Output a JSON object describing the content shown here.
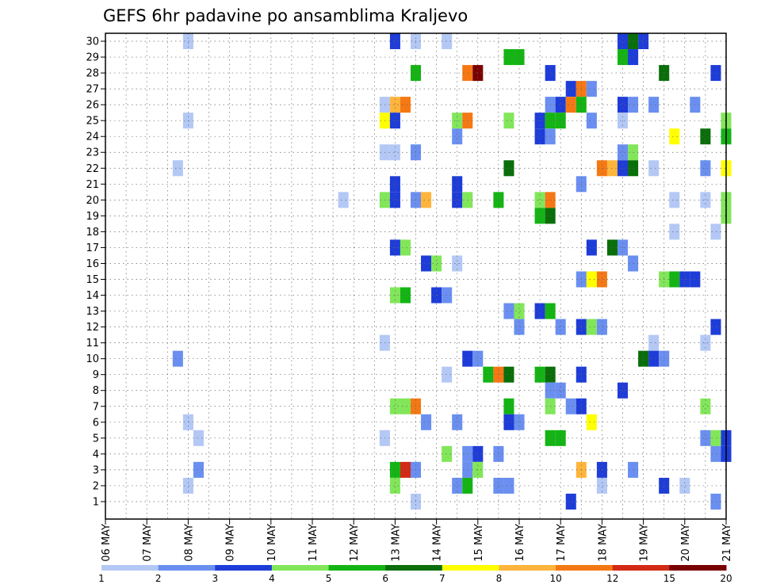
{
  "chart_data": {
    "type": "heatmap",
    "title": "GEFS 6hr padavine po ansamblima Kraljevo",
    "y_ticks": [
      1,
      2,
      3,
      4,
      5,
      6,
      7,
      8,
      9,
      10,
      11,
      12,
      13,
      14,
      15,
      16,
      17,
      18,
      19,
      20,
      21,
      22,
      23,
      24,
      25,
      26,
      27,
      28,
      29,
      30
    ],
    "x_tick_labels": [
      "06 MAY",
      "07 MAY",
      "08 MAY",
      "09 MAY",
      "10 MAY",
      "11 MAY",
      "12 MAY",
      "13 MAY",
      "14 MAY",
      "15 MAY",
      "16 MAY",
      "17 MAY",
      "18 MAY",
      "19 MAY",
      "20 MAY",
      "21 MAY"
    ],
    "steps_per_day": 4,
    "grid": true,
    "legend": {
      "position": "bottom",
      "colors": [
        "#b4c8f5",
        "#6a8ff0",
        "#1e3cd8",
        "#82e65a",
        "#14b414",
        "#0a6e0a",
        "#ffff00",
        "#ffb43c",
        "#f57814",
        "#d22a14",
        "#7a0000"
      ],
      "tick_labels": [
        "1",
        "2",
        "3",
        "4",
        "5",
        "6",
        "7",
        "8",
        "10",
        "12",
        "15",
        "20"
      ]
    },
    "cells": [
      {
        "x": "08 MAY 00",
        "member": 30,
        "bin": 1
      },
      {
        "x": "13 MAY 00",
        "member": 30,
        "bin": 3
      },
      {
        "x": "13 MAY 12",
        "member": 30,
        "bin": 1
      },
      {
        "x": "14 MAY 06",
        "member": 30,
        "bin": 1
      },
      {
        "x": "18 MAY 12",
        "member": 30,
        "bin": 3
      },
      {
        "x": "18 MAY 18",
        "member": 30,
        "bin": 6
      },
      {
        "x": "19 MAY 00",
        "member": 30,
        "bin": 3
      },
      {
        "x": "15 MAY 18",
        "member": 29,
        "bin": 5
      },
      {
        "x": "16 MAY 00",
        "member": 29,
        "bin": 5
      },
      {
        "x": "18 MAY 12",
        "member": 29,
        "bin": 5
      },
      {
        "x": "18 MAY 18",
        "member": 29,
        "bin": 3
      },
      {
        "x": "13 MAY 12",
        "member": 28,
        "bin": 5
      },
      {
        "x": "14 MAY 18",
        "member": 28,
        "bin": 9
      },
      {
        "x": "15 MAY 00",
        "member": 28,
        "bin": 11
      },
      {
        "x": "16 MAY 18",
        "member": 28,
        "bin": 3
      },
      {
        "x": "19 MAY 12",
        "member": 28,
        "bin": 6
      },
      {
        "x": "20 MAY 18",
        "member": 28,
        "bin": 3
      },
      {
        "x": "17 MAY 06",
        "member": 27,
        "bin": 3
      },
      {
        "x": "17 MAY 12",
        "member": 27,
        "bin": 9
      },
      {
        "x": "17 MAY 18",
        "member": 27,
        "bin": 2
      },
      {
        "x": "12 MAY 18",
        "member": 26,
        "bin": 1
      },
      {
        "x": "13 MAY 00",
        "member": 26,
        "bin": 8
      },
      {
        "x": "13 MAY 06",
        "member": 26,
        "bin": 9
      },
      {
        "x": "16 MAY 18",
        "member": 26,
        "bin": 2
      },
      {
        "x": "17 MAY 00",
        "member": 26,
        "bin": 3
      },
      {
        "x": "17 MAY 06",
        "member": 26,
        "bin": 9
      },
      {
        "x": "17 MAY 12",
        "member": 26,
        "bin": 5
      },
      {
        "x": "18 MAY 12",
        "member": 26,
        "bin": 3
      },
      {
        "x": "18 MAY 18",
        "member": 26,
        "bin": 2
      },
      {
        "x": "19 MAY 06",
        "member": 26,
        "bin": 2
      },
      {
        "x": "20 MAY 06",
        "member": 26,
        "bin": 2
      },
      {
        "x": "08 MAY 00",
        "member": 25,
        "bin": 1
      },
      {
        "x": "12 MAY 18",
        "member": 25,
        "bin": 7
      },
      {
        "x": "13 MAY 00",
        "member": 25,
        "bin": 3
      },
      {
        "x": "14 MAY 12",
        "member": 25,
        "bin": 4
      },
      {
        "x": "14 MAY 18",
        "member": 25,
        "bin": 9
      },
      {
        "x": "15 MAY 18",
        "member": 25,
        "bin": 4
      },
      {
        "x": "16 MAY 12",
        "member": 25,
        "bin": 3
      },
      {
        "x": "16 MAY 18",
        "member": 25,
        "bin": 5
      },
      {
        "x": "17 MAY 00",
        "member": 25,
        "bin": 5
      },
      {
        "x": "17 MAY 18",
        "member": 25,
        "bin": 2
      },
      {
        "x": "18 MAY 12",
        "member": 25,
        "bin": 1
      },
      {
        "x": "21 MAY 00",
        "member": 25,
        "bin": 4
      },
      {
        "x": "14 MAY 12",
        "member": 24,
        "bin": 2
      },
      {
        "x": "16 MAY 12",
        "member": 24,
        "bin": 3
      },
      {
        "x": "16 MAY 18",
        "member": 24,
        "bin": 2
      },
      {
        "x": "19 MAY 18",
        "member": 24,
        "bin": 7
      },
      {
        "x": "20 MAY 12",
        "member": 24,
        "bin": 6
      },
      {
        "x": "21 MAY 00",
        "member": 24,
        "bin": 5
      },
      {
        "x": "12 MAY 18",
        "member": 23,
        "bin": 1
      },
      {
        "x": "13 MAY 00",
        "member": 23,
        "bin": 1
      },
      {
        "x": "13 MAY 12",
        "member": 23,
        "bin": 2
      },
      {
        "x": "18 MAY 12",
        "member": 23,
        "bin": 2
      },
      {
        "x": "18 MAY 18",
        "member": 23,
        "bin": 4
      },
      {
        "x": "07 MAY 18",
        "member": 22,
        "bin": 1
      },
      {
        "x": "15 MAY 18",
        "member": 22,
        "bin": 6
      },
      {
        "x": "18 MAY 00",
        "member": 22,
        "bin": 9
      },
      {
        "x": "18 MAY 06",
        "member": 22,
        "bin": 8
      },
      {
        "x": "18 MAY 12",
        "member": 22,
        "bin": 3
      },
      {
        "x": "18 MAY 18",
        "member": 22,
        "bin": 6
      },
      {
        "x": "19 MAY 06",
        "member": 22,
        "bin": 1
      },
      {
        "x": "20 MAY 12",
        "member": 22,
        "bin": 2
      },
      {
        "x": "21 MAY 00",
        "member": 22,
        "bin": 7
      },
      {
        "x": "13 MAY 00",
        "member": 21,
        "bin": 3
      },
      {
        "x": "14 MAY 12",
        "member": 21,
        "bin": 3
      },
      {
        "x": "17 MAY 12",
        "member": 21,
        "bin": 2
      },
      {
        "x": "11 MAY 18",
        "member": 20,
        "bin": 1
      },
      {
        "x": "12 MAY 18",
        "member": 20,
        "bin": 4
      },
      {
        "x": "13 MAY 00",
        "member": 20,
        "bin": 3
      },
      {
        "x": "13 MAY 12",
        "member": 20,
        "bin": 2
      },
      {
        "x": "13 MAY 18",
        "member": 20,
        "bin": 8
      },
      {
        "x": "14 MAY 12",
        "member": 20,
        "bin": 3
      },
      {
        "x": "14 MAY 18",
        "member": 20,
        "bin": 4
      },
      {
        "x": "15 MAY 12",
        "member": 20,
        "bin": 5
      },
      {
        "x": "16 MAY 12",
        "member": 20,
        "bin": 4
      },
      {
        "x": "16 MAY 18",
        "member": 20,
        "bin": 9
      },
      {
        "x": "19 MAY 18",
        "member": 20,
        "bin": 1
      },
      {
        "x": "20 MAY 12",
        "member": 20,
        "bin": 1
      },
      {
        "x": "21 MAY 00",
        "member": 20,
        "bin": 4
      },
      {
        "x": "16 MAY 12",
        "member": 19,
        "bin": 5
      },
      {
        "x": "16 MAY 18",
        "member": 19,
        "bin": 6
      },
      {
        "x": "21 MAY 00",
        "member": 19,
        "bin": 4
      },
      {
        "x": "19 MAY 18",
        "member": 18,
        "bin": 1
      },
      {
        "x": "20 MAY 18",
        "member": 18,
        "bin": 1
      },
      {
        "x": "13 MAY 00",
        "member": 17,
        "bin": 3
      },
      {
        "x": "13 MAY 06",
        "member": 17,
        "bin": 4
      },
      {
        "x": "17 MAY 18",
        "member": 17,
        "bin": 3
      },
      {
        "x": "18 MAY 06",
        "member": 17,
        "bin": 6
      },
      {
        "x": "18 MAY 12",
        "member": 17,
        "bin": 2
      },
      {
        "x": "13 MAY 18",
        "member": 16,
        "bin": 3
      },
      {
        "x": "14 MAY 00",
        "member": 16,
        "bin": 4
      },
      {
        "x": "14 MAY 12",
        "member": 16,
        "bin": 1
      },
      {
        "x": "18 MAY 18",
        "member": 16,
        "bin": 2
      },
      {
        "x": "17 MAY 12",
        "member": 15,
        "bin": 2
      },
      {
        "x": "17 MAY 18",
        "member": 15,
        "bin": 7
      },
      {
        "x": "18 MAY 00",
        "member": 15,
        "bin": 9
      },
      {
        "x": "19 MAY 12",
        "member": 15,
        "bin": 4
      },
      {
        "x": "19 MAY 18",
        "member": 15,
        "bin": 5
      },
      {
        "x": "20 MAY 00",
        "member": 15,
        "bin": 3
      },
      {
        "x": "20 MAY 06",
        "member": 15,
        "bin": 3
      },
      {
        "x": "13 MAY 00",
        "member": 14,
        "bin": 4
      },
      {
        "x": "13 MAY 06",
        "member": 14,
        "bin": 5
      },
      {
        "x": "14 MAY 00",
        "member": 14,
        "bin": 3
      },
      {
        "x": "14 MAY 06",
        "member": 14,
        "bin": 2
      },
      {
        "x": "15 MAY 18",
        "member": 13,
        "bin": 2
      },
      {
        "x": "16 MAY 00",
        "member": 13,
        "bin": 4
      },
      {
        "x": "16 MAY 12",
        "member": 13,
        "bin": 3
      },
      {
        "x": "16 MAY 18",
        "member": 13,
        "bin": 5
      },
      {
        "x": "16 MAY 00",
        "member": 12,
        "bin": 2
      },
      {
        "x": "17 MAY 00",
        "member": 12,
        "bin": 2
      },
      {
        "x": "17 MAY 12",
        "member": 12,
        "bin": 3
      },
      {
        "x": "17 MAY 18",
        "member": 12,
        "bin": 4
      },
      {
        "x": "18 MAY 00",
        "member": 12,
        "bin": 2
      },
      {
        "x": "20 MAY 18",
        "member": 12,
        "bin": 3
      },
      {
        "x": "12 MAY 18",
        "member": 11,
        "bin": 1
      },
      {
        "x": "19 MAY 06",
        "member": 11,
        "bin": 1
      },
      {
        "x": "20 MAY 12",
        "member": 11,
        "bin": 1
      },
      {
        "x": "07 MAY 18",
        "member": 10,
        "bin": 2
      },
      {
        "x": "14 MAY 18",
        "member": 10,
        "bin": 3
      },
      {
        "x": "15 MAY 00",
        "member": 10,
        "bin": 2
      },
      {
        "x": "19 MAY 00",
        "member": 10,
        "bin": 6
      },
      {
        "x": "19 MAY 06",
        "member": 10,
        "bin": 3
      },
      {
        "x": "19 MAY 12",
        "member": 10,
        "bin": 2
      },
      {
        "x": "14 MAY 06",
        "member": 9,
        "bin": 1
      },
      {
        "x": "15 MAY 06",
        "member": 9,
        "bin": 5
      },
      {
        "x": "15 MAY 12",
        "member": 9,
        "bin": 9
      },
      {
        "x": "15 MAY 18",
        "member": 9,
        "bin": 6
      },
      {
        "x": "16 MAY 12",
        "member": 9,
        "bin": 5
      },
      {
        "x": "16 MAY 18",
        "member": 9,
        "bin": 6
      },
      {
        "x": "17 MAY 12",
        "member": 9,
        "bin": 3
      },
      {
        "x": "16 MAY 18",
        "member": 8,
        "bin": 2
      },
      {
        "x": "17 MAY 00",
        "member": 8,
        "bin": 2
      },
      {
        "x": "18 MAY 12",
        "member": 8,
        "bin": 3
      },
      {
        "x": "13 MAY 00",
        "member": 7,
        "bin": 4
      },
      {
        "x": "13 MAY 06",
        "member": 7,
        "bin": 4
      },
      {
        "x": "13 MAY 12",
        "member": 7,
        "bin": 9
      },
      {
        "x": "15 MAY 18",
        "member": 7,
        "bin": 5
      },
      {
        "x": "16 MAY 18",
        "member": 7,
        "bin": 4
      },
      {
        "x": "17 MAY 06",
        "member": 7,
        "bin": 2
      },
      {
        "x": "17 MAY 12",
        "member": 7,
        "bin": 3
      },
      {
        "x": "20 MAY 12",
        "member": 7,
        "bin": 4
      },
      {
        "x": "08 MAY 00",
        "member": 6,
        "bin": 1
      },
      {
        "x": "13 MAY 18",
        "member": 6,
        "bin": 2
      },
      {
        "x": "14 MAY 12",
        "member": 6,
        "bin": 2
      },
      {
        "x": "15 MAY 18",
        "member": 6,
        "bin": 3
      },
      {
        "x": "16 MAY 00",
        "member": 6,
        "bin": 2
      },
      {
        "x": "17 MAY 18",
        "member": 6,
        "bin": 7
      },
      {
        "x": "08 MAY 06",
        "member": 5,
        "bin": 1
      },
      {
        "x": "12 MAY 18",
        "member": 5,
        "bin": 1
      },
      {
        "x": "16 MAY 18",
        "member": 5,
        "bin": 5
      },
      {
        "x": "17 MAY 00",
        "member": 5,
        "bin": 5
      },
      {
        "x": "20 MAY 12",
        "member": 5,
        "bin": 2
      },
      {
        "x": "20 MAY 18",
        "member": 5,
        "bin": 4
      },
      {
        "x": "21 MAY 00",
        "member": 5,
        "bin": 3
      },
      {
        "x": "14 MAY 06",
        "member": 4,
        "bin": 4
      },
      {
        "x": "14 MAY 18",
        "member": 4,
        "bin": 2
      },
      {
        "x": "15 MAY 00",
        "member": 4,
        "bin": 3
      },
      {
        "x": "15 MAY 12",
        "member": 4,
        "bin": 2
      },
      {
        "x": "20 MAY 18",
        "member": 4,
        "bin": 2
      },
      {
        "x": "21 MAY 00",
        "member": 4,
        "bin": 3
      },
      {
        "x": "08 MAY 06",
        "member": 3,
        "bin": 2
      },
      {
        "x": "13 MAY 00",
        "member": 3,
        "bin": 5
      },
      {
        "x": "13 MAY 06",
        "member": 3,
        "bin": 10
      },
      {
        "x": "13 MAY 12",
        "member": 3,
        "bin": 2
      },
      {
        "x": "14 MAY 18",
        "member": 3,
        "bin": 2
      },
      {
        "x": "15 MAY 00",
        "member": 3,
        "bin": 4
      },
      {
        "x": "17 MAY 12",
        "member": 3,
        "bin": 8
      },
      {
        "x": "18 MAY 00",
        "member": 3,
        "bin": 3
      },
      {
        "x": "18 MAY 18",
        "member": 3,
        "bin": 2
      },
      {
        "x": "08 MAY 00",
        "member": 2,
        "bin": 1
      },
      {
        "x": "13 MAY 00",
        "member": 2,
        "bin": 4
      },
      {
        "x": "14 MAY 12",
        "member": 2,
        "bin": 2
      },
      {
        "x": "14 MAY 18",
        "member": 2,
        "bin": 5
      },
      {
        "x": "15 MAY 12",
        "member": 2,
        "bin": 2
      },
      {
        "x": "15 MAY 18",
        "member": 2,
        "bin": 2
      },
      {
        "x": "18 MAY 00",
        "member": 2,
        "bin": 1
      },
      {
        "x": "19 MAY 12",
        "member": 2,
        "bin": 3
      },
      {
        "x": "20 MAY 00",
        "member": 2,
        "bin": 1
      },
      {
        "x": "13 MAY 12",
        "member": 1,
        "bin": 1
      },
      {
        "x": "17 MAY 06",
        "member": 1,
        "bin": 3
      },
      {
        "x": "20 MAY 18",
        "member": 1,
        "bin": 2
      }
    ]
  }
}
